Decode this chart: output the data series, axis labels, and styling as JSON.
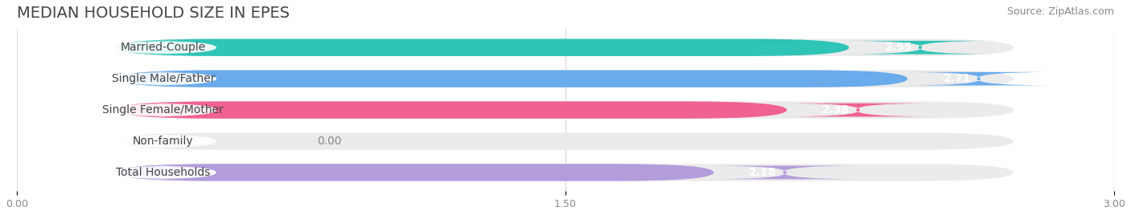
{
  "title": "MEDIAN HOUSEHOLD SIZE IN EPES",
  "source": "Source: ZipAtlas.com",
  "categories": [
    "Married-Couple",
    "Single Male/Father",
    "Single Female/Mother",
    "Non-family",
    "Total Households"
  ],
  "values": [
    2.55,
    2.71,
    2.38,
    0.0,
    2.18
  ],
  "bar_colors": [
    "#2ec4b6",
    "#6aabec",
    "#f06292",
    "#f5c897",
    "#b39ddb"
  ],
  "xlim_max": 3.0,
  "xticks": [
    0.0,
    1.5,
    3.0
  ],
  "xtick_labels": [
    "0.00",
    "1.50",
    "3.00"
  ],
  "background_color": "#ffffff",
  "bar_bg_color": "#ebebeb",
  "title_fontsize": 14,
  "source_fontsize": 9,
  "label_fontsize": 10,
  "value_fontsize": 10
}
